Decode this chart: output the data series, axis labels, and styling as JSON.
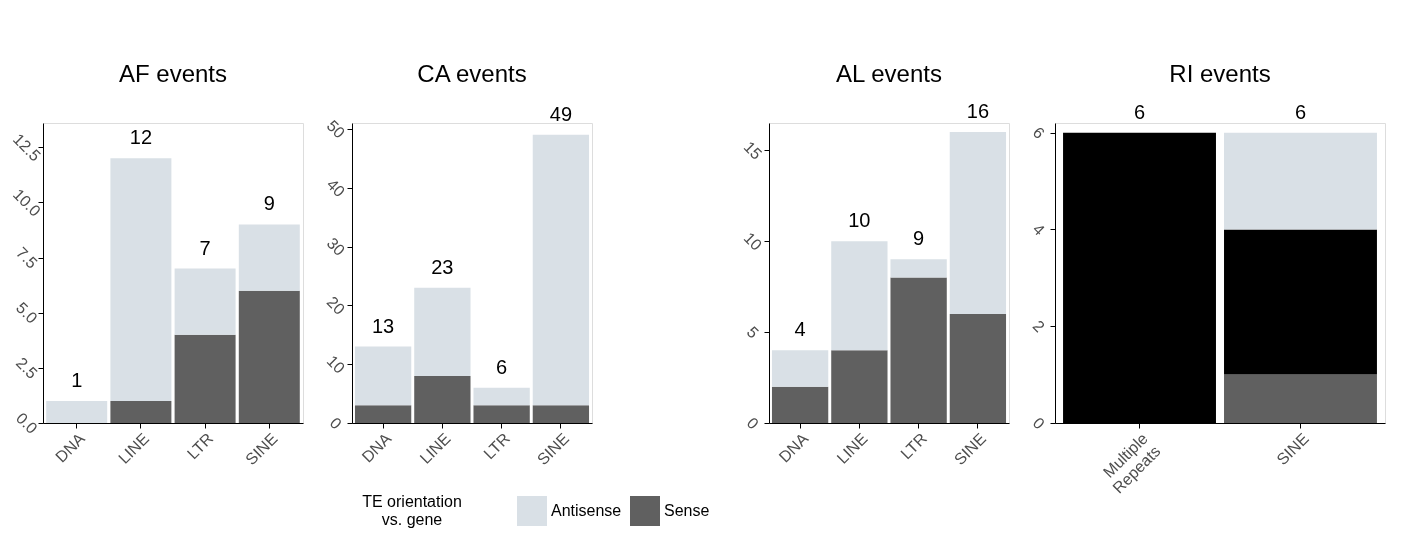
{
  "chart_data": [
    {
      "type": "bar",
      "stacked": true,
      "title": "AF events",
      "categories": [
        "DNA",
        "LINE",
        "LTR",
        "SINE"
      ],
      "series": [
        {
          "color": "#606060",
          "values": [
            0,
            1,
            4,
            6
          ]
        },
        {
          "color": "#d9e0e6",
          "values": [
            1,
            11,
            3,
            3
          ]
        }
      ],
      "totals": [
        "1",
        "12",
        "7",
        "9"
      ],
      "ylim": [
        0,
        13.6
      ],
      "yticks": [
        {
          "value": 0,
          "label": "0.0"
        },
        2.5,
        {
          "value": 5,
          "label": "5.0"
        },
        7.5,
        {
          "value": 10,
          "label": "10.0"
        },
        12.5
      ]
    },
    {
      "type": "bar",
      "stacked": true,
      "title": "CA events",
      "categories": [
        "DNA",
        "LINE",
        "LTR",
        "SINE"
      ],
      "series": [
        {
          "name": "Sense",
          "color": "#606060",
          "values": [
            3,
            8,
            3,
            3
          ]
        },
        {
          "name": "Antisense",
          "color": "#d9e0e6",
          "values": [
            10,
            15,
            3,
            46
          ]
        }
      ],
      "totals": [
        "13",
        "23",
        "6",
        "49"
      ],
      "ylim": [
        0,
        51
      ],
      "yticks": [
        0,
        10,
        20,
        30,
        40,
        50
      ],
      "legend": "bottom",
      "legend_title": "TE orientation\nvs. gene"
    },
    {
      "type": "bar",
      "stacked": true,
      "title": "AL events",
      "categories": [
        "DNA",
        "LINE",
        "LTR",
        "SINE"
      ],
      "series": [
        {
          "color": "#606060",
          "values": [
            2,
            4,
            8,
            6
          ]
        },
        {
          "color": "#d9e0e6",
          "values": [
            2,
            6,
            1,
            10
          ]
        }
      ],
      "totals": [
        "4",
        "10",
        "9",
        "16"
      ],
      "ylim": [
        0,
        16.5
      ],
      "yticks": [
        0,
        5,
        10,
        15
      ]
    },
    {
      "type": "bar",
      "stacked": true,
      "title": "RI events",
      "categories": [
        "Multiple Repeats",
        "SINE"
      ],
      "series": [
        {
          "color": "#606060",
          "values": [
            0,
            1
          ]
        },
        {
          "color": "#000000",
          "values": [
            6,
            3
          ]
        },
        {
          "color": "#d9e0e6",
          "values": [
            0,
            2
          ]
        }
      ],
      "totals": [
        "6",
        "6"
      ],
      "ylim": [
        0,
        6.2
      ],
      "yticks": [
        0,
        2,
        4,
        6
      ]
    }
  ]
}
